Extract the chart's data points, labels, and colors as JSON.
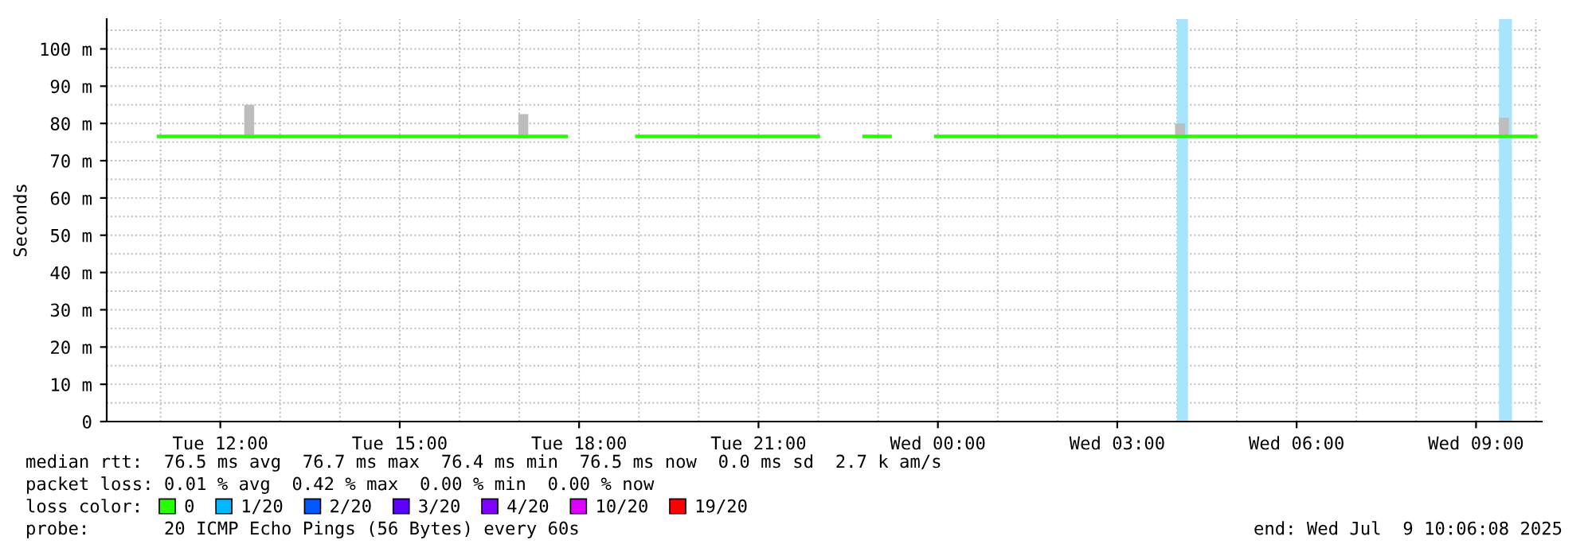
{
  "chart_data": {
    "type": "line",
    "ylabel": "Seconds",
    "xlim": [
      "2025-07-08T10:06",
      "2025-07-09T10:06"
    ],
    "xticks": [
      {
        "value": "2025-07-08T12:00",
        "label": "Tue 12:00"
      },
      {
        "value": "2025-07-08T15:00",
        "label": "Tue 15:00"
      },
      {
        "value": "2025-07-08T18:00",
        "label": "Tue 18:00"
      },
      {
        "value": "2025-07-08T21:00",
        "label": "Tue 21:00"
      },
      {
        "value": "2025-07-09T00:00",
        "label": "Wed 00:00"
      },
      {
        "value": "2025-07-09T03:00",
        "label": "Wed 03:00"
      },
      {
        "value": "2025-07-09T06:00",
        "label": "Wed 06:00"
      },
      {
        "value": "2025-07-09T09:00",
        "label": "Wed 09:00"
      }
    ],
    "ylim": [
      0,
      108
    ],
    "yticks": [
      0,
      {
        "value": 10,
        "label": "10 m"
      },
      {
        "value": 20,
        "label": "20 m"
      },
      {
        "value": 30,
        "label": "30 m"
      },
      {
        "value": 40,
        "label": "40 m"
      },
      {
        "value": 50,
        "label": "50 m"
      },
      {
        "value": 60,
        "label": "60 m"
      },
      {
        "value": 70,
        "label": "70 m"
      },
      {
        "value": 80,
        "label": "80 m"
      },
      {
        "value": 90,
        "label": "90 m"
      },
      {
        "value": 100,
        "label": "100 m"
      }
    ],
    "grid": true,
    "legend": "bottom left",
    "series": [
      {
        "name": "0",
        "color": "#26ff00",
        "x": [
          "2025-07-08T10:58",
          "2025-07-08T12:24",
          "2025-07-08T12:34",
          "2025-07-08T12:35",
          "2025-07-08T13:49",
          "2025-07-08T13:59",
          "2025-07-08T14:00",
          "2025-07-08T16:59",
          "2025-07-08T17:09",
          "2025-07-08T17:47",
          "2025-07-08T17:48",
          "2025-07-08T18:58",
          "2025-07-08T22:00",
          "2025-07-08T22:01",
          "2025-07-08T22:46",
          "2025-07-08T23:12",
          "2025-07-08T23:13",
          "2025-07-08T23:58",
          "2025-07-09T03:58",
          "2025-07-09T04:08",
          "2025-07-09T04:09",
          "2025-07-09T09:23",
          "2025-07-09T09:33",
          "2025-07-09T10:00"
        ],
        "values": [
          76.5,
          76.5,
          76.5,
          76.5,
          76.5,
          76.5,
          76.5,
          76.5,
          76.5,
          76.5,
          null,
          76.5,
          76.5,
          null,
          76.5,
          76.5,
          null,
          76.5,
          76.5,
          76.5,
          76.5,
          76.5,
          76.5,
          76.5
        ],
        "lower": [
          null,
          76,
          76,
          null,
          null,
          null,
          null,
          76,
          76,
          null,
          null,
          null,
          null,
          null,
          null,
          null,
          null,
          null,
          76,
          76,
          null,
          76,
          76,
          null
        ],
        "upper": [
          null,
          85,
          85,
          null,
          null,
          null,
          null,
          82.5,
          82.5,
          null,
          null,
          null,
          null,
          null,
          null,
          null,
          null,
          null,
          80,
          80,
          null,
          81.5,
          81.5,
          null
        ]
      },
      {
        "name": "1/20",
        "color": "#00b8ff"
      },
      {
        "name": "2/20",
        "color": "#0059ff"
      },
      {
        "name": "3/20",
        "color": "#5e00ff"
      },
      {
        "name": "4/20",
        "color": "#7e00ff"
      },
      {
        "name": "10/20",
        "color": "#dd00ff"
      },
      {
        "name": "19/20",
        "color": "#ff0000"
      }
    ],
    "bands": [
      {
        "axis": "x",
        "from": "2025-07-09T04:00",
        "to": "2025-07-09T04:11",
        "color": "#a8e4fc"
      },
      {
        "axis": "x",
        "from": "2025-07-09T09:23",
        "to": "2025-07-09T09:36",
        "color": "#a8e4fc"
      }
    ],
    "annotations": [
      "median rtt:  76.5 ms avg  76.7 ms max  76.4 ms min  76.5 ms now  0.0 ms sd  2.7 k am/s",
      "packet loss: 0.01 % avg  0.42 % max  0.00 % min  0.00 % now",
      "loss color:",
      "probe:       20 ICMP Echo Pings (56 Bytes) every 60s",
      "end: Wed Jul  9 10:06:08 2025"
    ]
  }
}
